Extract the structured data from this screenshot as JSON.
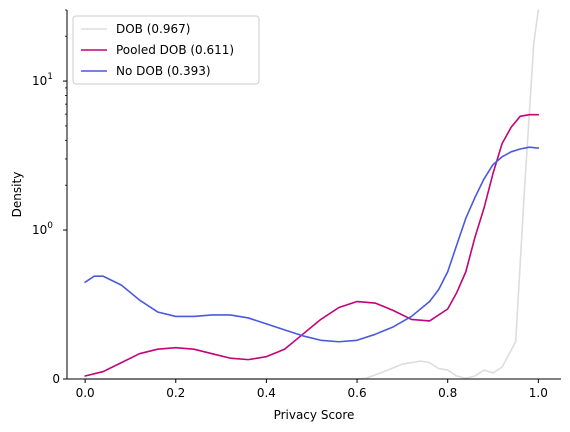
{
  "chart_data": {
    "type": "line",
    "xlabel": "Privacy Score",
    "ylabel": "Density",
    "xlim": [
      -0.04,
      1.05
    ],
    "x_ticks": [
      {
        "value": 0.0,
        "label": "0.0"
      },
      {
        "value": 0.2,
        "label": "0.2"
      },
      {
        "value": 0.4,
        "label": "0.4"
      },
      {
        "value": 0.6,
        "label": "0.6"
      },
      {
        "value": 0.8,
        "label": "0.8"
      },
      {
        "value": 1.0,
        "label": "1.0"
      }
    ],
    "y_scale": "symlog",
    "ylim": [
      0,
      30
    ],
    "y_ticks": [
      {
        "value": 0,
        "label": "0"
      },
      {
        "value": 1,
        "label": "10",
        "exponent": "0"
      },
      {
        "value": 10,
        "label": "10",
        "exponent": "1"
      }
    ],
    "grid": false,
    "legend_position": "top-left",
    "series": [
      {
        "name": "DOB (0.967)",
        "color": "#dddddd",
        "points": [
          [
            0.0,
            0.0
          ],
          [
            0.5,
            0.0
          ],
          [
            0.6,
            0.0
          ],
          [
            0.62,
            0.005
          ],
          [
            0.66,
            0.05
          ],
          [
            0.7,
            0.1
          ],
          [
            0.74,
            0.12
          ],
          [
            0.76,
            0.11
          ],
          [
            0.78,
            0.07
          ],
          [
            0.8,
            0.06
          ],
          [
            0.82,
            0.02
          ],
          [
            0.84,
            0.005
          ],
          [
            0.86,
            0.02
          ],
          [
            0.88,
            0.06
          ],
          [
            0.9,
            0.04
          ],
          [
            0.92,
            0.08
          ],
          [
            0.95,
            0.25
          ],
          [
            0.97,
            2.0
          ],
          [
            0.99,
            18.0
          ],
          [
            1.0,
            30.0
          ]
        ]
      },
      {
        "name": "Pooled DOB (0.611)",
        "color": "#c0047c",
        "points": [
          [
            0.0,
            0.02
          ],
          [
            0.04,
            0.05
          ],
          [
            0.08,
            0.11
          ],
          [
            0.12,
            0.17
          ],
          [
            0.16,
            0.2
          ],
          [
            0.2,
            0.21
          ],
          [
            0.24,
            0.2
          ],
          [
            0.28,
            0.17
          ],
          [
            0.32,
            0.14
          ],
          [
            0.36,
            0.13
          ],
          [
            0.4,
            0.15
          ],
          [
            0.44,
            0.2
          ],
          [
            0.48,
            0.3
          ],
          [
            0.52,
            0.4
          ],
          [
            0.56,
            0.48
          ],
          [
            0.6,
            0.52
          ],
          [
            0.64,
            0.51
          ],
          [
            0.68,
            0.46
          ],
          [
            0.72,
            0.4
          ],
          [
            0.76,
            0.39
          ],
          [
            0.8,
            0.47
          ],
          [
            0.82,
            0.58
          ],
          [
            0.84,
            0.72
          ],
          [
            0.86,
            0.95
          ],
          [
            0.88,
            1.4
          ],
          [
            0.9,
            2.4
          ],
          [
            0.92,
            3.8
          ],
          [
            0.94,
            4.9
          ],
          [
            0.96,
            5.8
          ],
          [
            0.98,
            5.95
          ],
          [
            1.0,
            5.95
          ]
        ]
      },
      {
        "name": "No DOB (0.393)",
        "color": "#4a5adc",
        "points": [
          [
            0.0,
            0.65
          ],
          [
            0.02,
            0.69
          ],
          [
            0.04,
            0.69
          ],
          [
            0.08,
            0.63
          ],
          [
            0.12,
            0.53
          ],
          [
            0.16,
            0.45
          ],
          [
            0.2,
            0.42
          ],
          [
            0.24,
            0.42
          ],
          [
            0.28,
            0.43
          ],
          [
            0.32,
            0.43
          ],
          [
            0.36,
            0.41
          ],
          [
            0.4,
            0.37
          ],
          [
            0.44,
            0.33
          ],
          [
            0.48,
            0.29
          ],
          [
            0.52,
            0.26
          ],
          [
            0.56,
            0.25
          ],
          [
            0.6,
            0.26
          ],
          [
            0.64,
            0.3
          ],
          [
            0.68,
            0.35
          ],
          [
            0.72,
            0.42
          ],
          [
            0.76,
            0.52
          ],
          [
            0.78,
            0.6
          ],
          [
            0.8,
            0.72
          ],
          [
            0.82,
            0.9
          ],
          [
            0.84,
            1.2
          ],
          [
            0.86,
            1.65
          ],
          [
            0.88,
            2.2
          ],
          [
            0.9,
            2.75
          ],
          [
            0.92,
            3.1
          ],
          [
            0.94,
            3.35
          ],
          [
            0.96,
            3.5
          ],
          [
            0.98,
            3.6
          ],
          [
            1.0,
            3.55
          ]
        ]
      }
    ]
  }
}
